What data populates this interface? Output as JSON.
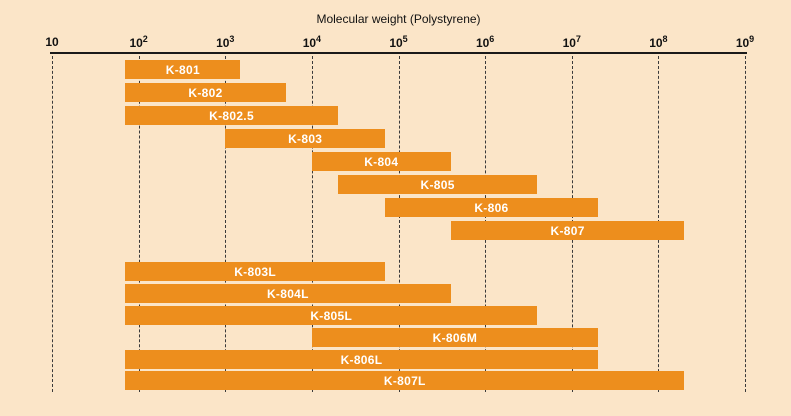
{
  "title": "Molecular weight (Polystyrene)",
  "colors": {
    "background": "#FBE5C8",
    "bar": "#ED8E1D",
    "axis": "#1A1A1A",
    "grid": "#3A3A3A",
    "bar_label": "#FFFFFF",
    "text": "#111111"
  },
  "chart_data": {
    "type": "bar",
    "orientation": "horizontal",
    "title": "Molecular weight (Polystyrene)",
    "xlabel": "Molecular weight (Polystyrene)",
    "ylabel": "",
    "axis": {
      "scale": "log",
      "min": 10,
      "max": 1000000000,
      "ticks": [
        "10",
        "10^2",
        "10^3",
        "10^4",
        "10^5",
        "10^6",
        "10^7",
        "10^8",
        "10^9"
      ],
      "grid": "dashed-vertical"
    },
    "legend": "none",
    "bars": [
      {
        "name": "K-801",
        "min": 70,
        "max": 1500,
        "group": 1
      },
      {
        "name": "K-802",
        "min": 70,
        "max": 5000,
        "group": 1
      },
      {
        "name": "K-802.5",
        "min": 70,
        "max": 20000,
        "group": 1
      },
      {
        "name": "K-803",
        "min": 1000,
        "max": 70000,
        "group": 1
      },
      {
        "name": "K-804",
        "min": 10000,
        "max": 400000,
        "group": 1
      },
      {
        "name": "K-805",
        "min": 20000,
        "max": 4000000,
        "group": 1
      },
      {
        "name": "K-806",
        "min": 70000,
        "max": 20000000,
        "group": 1
      },
      {
        "name": "K-807",
        "min": 400000,
        "max": 200000000,
        "group": 1
      },
      {
        "name": "K-803L",
        "min": 70,
        "max": 70000,
        "group": 2
      },
      {
        "name": "K-804L",
        "min": 70,
        "max": 400000,
        "group": 2
      },
      {
        "name": "K-805L",
        "min": 70,
        "max": 4000000,
        "group": 2
      },
      {
        "name": "K-806M",
        "min": 10000,
        "max": 20000000,
        "group": 2
      },
      {
        "name": "K-806L",
        "min": 70,
        "max": 20000000,
        "group": 2
      },
      {
        "name": "K-807L",
        "min": 70,
        "max": 200000000,
        "group": 2
      }
    ]
  }
}
